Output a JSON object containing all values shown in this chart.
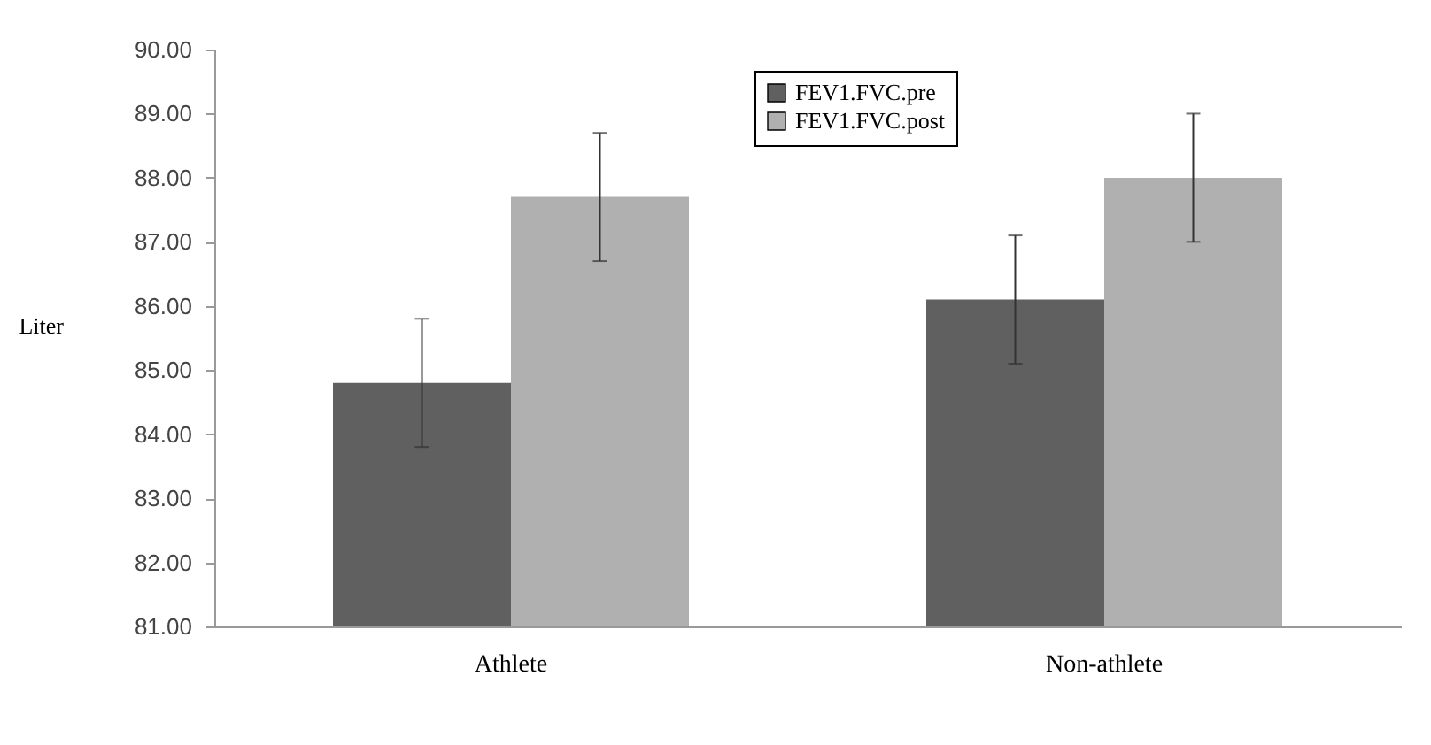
{
  "chart_data": {
    "type": "bar",
    "ylabel": "Liter",
    "categories": [
      "Athlete",
      "Non-athlete"
    ],
    "series": [
      {
        "name": "FEV1.FVC.pre",
        "color": "#606060",
        "values": [
          84.8,
          86.1
        ],
        "errors": [
          1.0,
          1.0
        ]
      },
      {
        "name": "FEV1.FVC.post",
        "color": "#b0b0b0",
        "values": [
          87.7,
          88.0
        ],
        "errors": [
          1.0,
          1.0
        ]
      }
    ],
    "ylim": [
      81,
      90
    ],
    "yticks": [
      {
        "value": 81,
        "label": "81.00"
      },
      {
        "value": 82,
        "label": "82.00"
      },
      {
        "value": 83,
        "label": "83.00"
      },
      {
        "value": 84,
        "label": "84.00"
      },
      {
        "value": 85,
        "label": "85.00"
      },
      {
        "value": 86,
        "label": "86.00"
      },
      {
        "value": 87,
        "label": "87.00"
      },
      {
        "value": 88,
        "label": "88.00"
      },
      {
        "value": 89,
        "label": "89.00"
      },
      {
        "value": 90,
        "label": "90.00"
      }
    ],
    "legend": "top",
    "grid": false
  }
}
